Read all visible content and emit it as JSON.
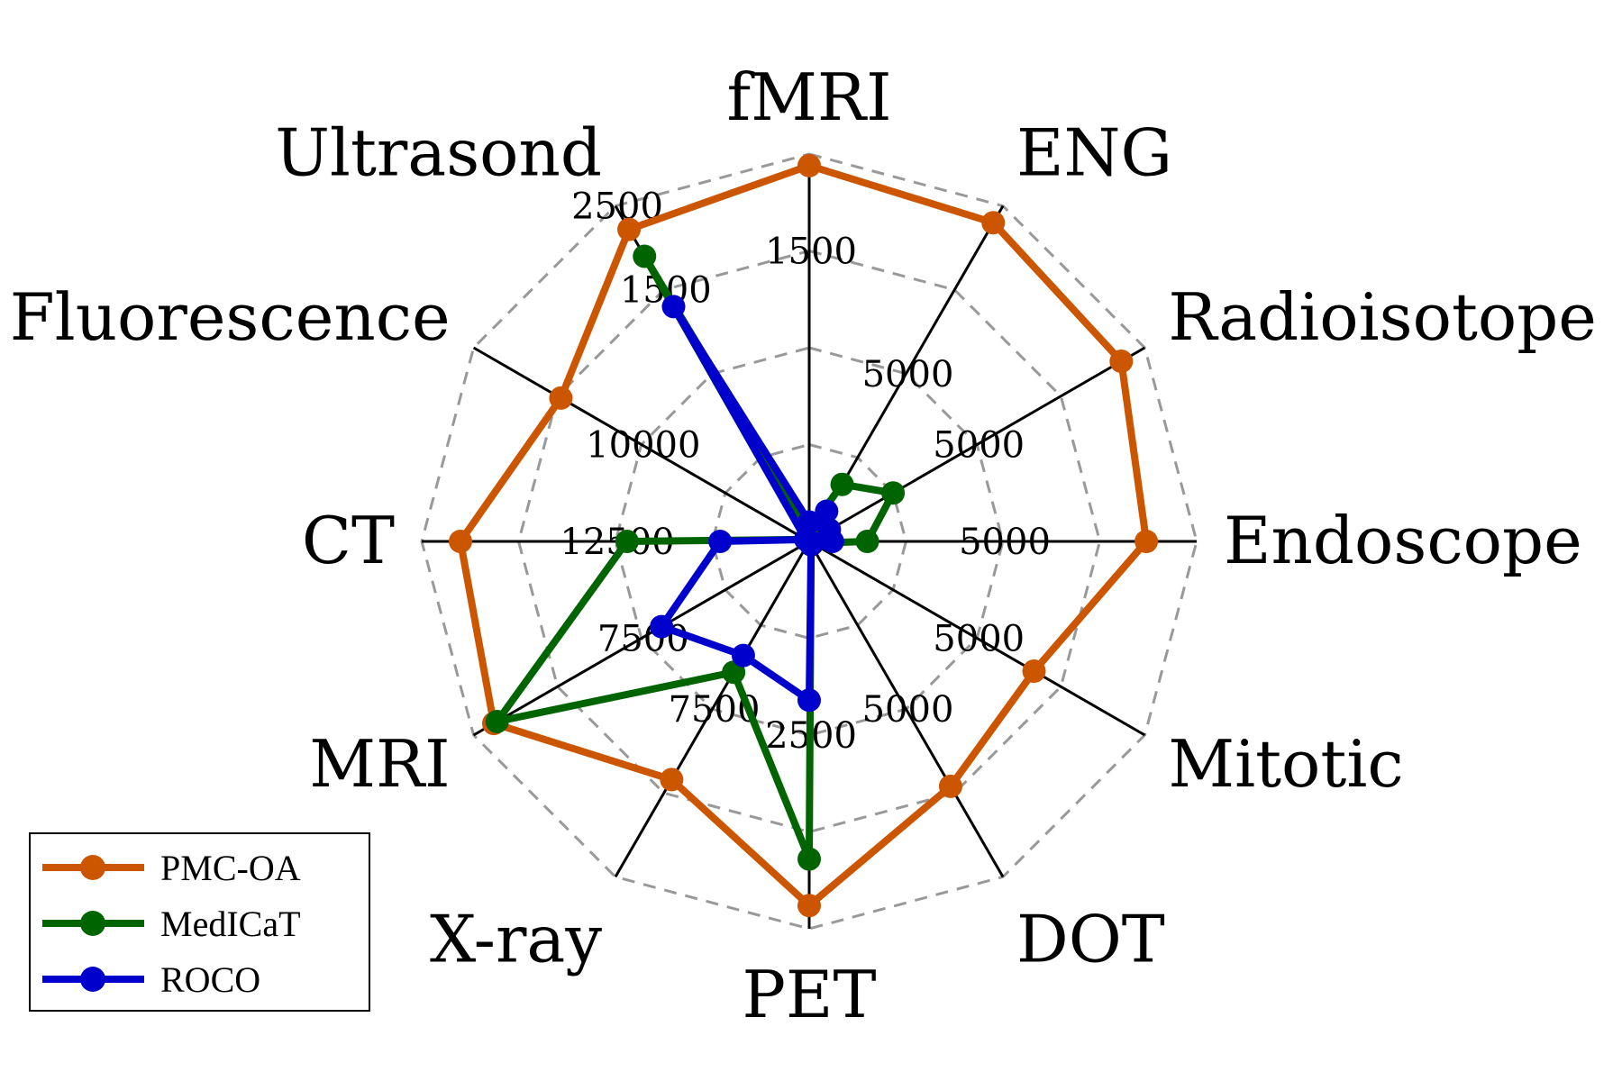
{
  "chart_data": {
    "type": "radar",
    "categories": [
      "fMRI",
      "ENG",
      "Radioisotope",
      "Endoscope",
      "Mitotic",
      "DOT",
      "PET",
      "X-ray",
      "MRI",
      "CT",
      "Fluorescence",
      "Ultrasond"
    ],
    "axis_tick_labels": [
      {
        "axis": "fMRI",
        "label": "1500",
        "r": 0.75
      },
      {
        "axis": "ENG",
        "label": "5000",
        "r": 0.5
      },
      {
        "axis": "Radioisotope",
        "label": "5000",
        "r": 0.5
      },
      {
        "axis": "Endoscope",
        "label": "5000",
        "r": 0.5
      },
      {
        "axis": "Mitotic",
        "label": "5000",
        "r": 0.5
      },
      {
        "axis": "DOT",
        "label": "5000",
        "r": 0.5
      },
      {
        "axis": "PET",
        "label": "2500",
        "r": 0.5
      },
      {
        "axis": "X-ray",
        "label": "7500",
        "r": 0.5
      },
      {
        "axis": "MRI",
        "label": "7500",
        "r": 0.5
      },
      {
        "axis": "CT",
        "label": "12500",
        "r": 0.5
      },
      {
        "axis": "Fluorescence",
        "label": "10000",
        "r": 0.5
      },
      {
        "axis": "Ultrasond",
        "label": "1500",
        "r": 0.75
      },
      {
        "axis": "Ultrasond",
        "label": "2500",
        "r": 1.0
      }
    ],
    "rmax": 1.0,
    "grid_levels": [
      0.25,
      0.5,
      0.75,
      1.0
    ],
    "grid": true,
    "legend_position": "bottom-left",
    "series": [
      {
        "name": "PMC-OA",
        "color": "#cc5500",
        "values": [
          0.97,
          0.95,
          0.93,
          0.87,
          0.67,
          0.73,
          0.94,
          0.71,
          0.94,
          0.9,
          0.74,
          0.93
        ]
      },
      {
        "name": "MedICaT",
        "color": "#006400",
        "values": [
          0.03,
          0.17,
          0.25,
          0.15,
          0.01,
          0.01,
          0.82,
          0.39,
          0.93,
          0.47,
          0.01,
          0.85
        ]
      },
      {
        "name": "ROCO",
        "color": "#0000cc",
        "values": [
          0.05,
          0.09,
          0.06,
          0.06,
          0.01,
          0.01,
          0.41,
          0.34,
          0.44,
          0.23,
          0.01,
          0.7
        ]
      }
    ]
  }
}
